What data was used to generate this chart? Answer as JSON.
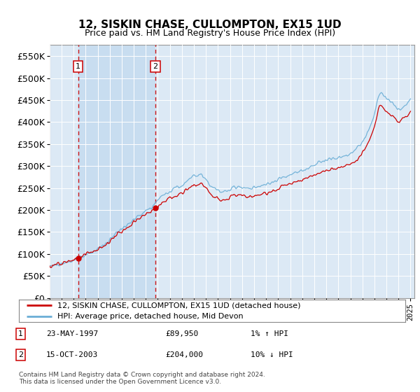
{
  "title": "12, SISKIN CHASE, CULLOMPTON, EX15 1UD",
  "subtitle": "Price paid vs. HM Land Registry's House Price Index (HPI)",
  "legend_line1": "12, SISKIN CHASE, CULLOMPTON, EX15 1UD (detached house)",
  "legend_line2": "HPI: Average price, detached house, Mid Devon",
  "table_row1_date": "23-MAY-1997",
  "table_row1_price": "£89,950",
  "table_row1_hpi": "1% ↑ HPI",
  "table_row2_date": "15-OCT-2003",
  "table_row2_price": "£204,000",
  "table_row2_hpi": "10% ↓ HPI",
  "footnote1": "Contains HM Land Registry data © Crown copyright and database right 2024.",
  "footnote2": "This data is licensed under the Open Government Licence v3.0.",
  "sale1_date": 1997.38,
  "sale1_price": 89950,
  "sale2_date": 2003.79,
  "sale2_price": 204000,
  "hpi_line_color": "#6aaed6",
  "price_line_color": "#cc0000",
  "sale_marker_color": "#cc0000",
  "vline_color": "#cc0000",
  "grid_color": "#ffffff",
  "shade_color": "#c8ddf0",
  "plot_bg_color": "#dce9f5",
  "ylim_min": 0,
  "ylim_max": 575000,
  "xlim_min": 1995,
  "xlim_max": 2025.3
}
